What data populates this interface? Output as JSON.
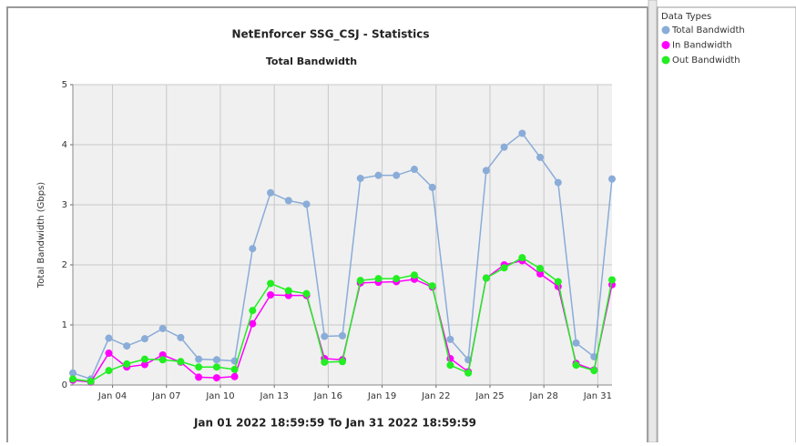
{
  "chart_data": {
    "type": "line",
    "title": "NetEnforcer SSG_CSJ - Statistics",
    "subtitle": "Total Bandwidth",
    "y_label": "Total Bandwidth (Gbps)",
    "footer": "Jan 01 2022 18:59:59  To  Jan 31 2022 18:59:59",
    "legend_title": "Data Types",
    "x": [
      "2022-01-01T18:59:59",
      "2022-01-02T18:59:59",
      "2022-01-03T18:59:59",
      "2022-01-04T18:59:59",
      "2022-01-05T18:59:59",
      "2022-01-06T18:59:59",
      "2022-01-07T18:59:59",
      "2022-01-08T18:59:59",
      "2022-01-09T18:59:59",
      "2022-01-10T18:59:59",
      "2022-01-11T18:59:59",
      "2022-01-12T18:59:59",
      "2022-01-13T18:59:59",
      "2022-01-14T18:59:59",
      "2022-01-15T18:59:59",
      "2022-01-16T18:59:59",
      "2022-01-17T18:59:59",
      "2022-01-18T18:59:59",
      "2022-01-19T18:59:59",
      "2022-01-20T18:59:59",
      "2022-01-21T18:59:59",
      "2022-01-22T18:59:59",
      "2022-01-23T18:59:59",
      "2022-01-24T18:59:59",
      "2022-01-25T18:59:59",
      "2022-01-26T18:59:59",
      "2022-01-27T18:59:59",
      "2022-01-28T18:59:59",
      "2022-01-29T18:59:59",
      "2022-01-30T18:59:59",
      "2022-01-31T18:59:59"
    ],
    "xlim": [
      "2022-01-01T18:59:59",
      "2022-01-31T18:59:59"
    ],
    "xticks": [
      {
        "value": "2022-01-04T00:00:00",
        "label": "Jan 04"
      },
      {
        "value": "2022-01-07T00:00:00",
        "label": "Jan 07"
      },
      {
        "value": "2022-01-10T00:00:00",
        "label": "Jan 10"
      },
      {
        "value": "2022-01-13T00:00:00",
        "label": "Jan 13"
      },
      {
        "value": "2022-01-16T00:00:00",
        "label": "Jan 16"
      },
      {
        "value": "2022-01-19T00:00:00",
        "label": "Jan 19"
      },
      {
        "value": "2022-01-22T00:00:00",
        "label": "Jan 22"
      },
      {
        "value": "2022-01-25T00:00:00",
        "label": "Jan 25"
      },
      {
        "value": "2022-01-28T00:00:00",
        "label": "Jan 28"
      },
      {
        "value": "2022-01-31T00:00:00",
        "label": "Jan 31"
      }
    ],
    "ylim": [
      0,
      5
    ],
    "yticks": [
      0,
      1,
      2,
      3,
      4,
      5
    ],
    "grid": true,
    "series": [
      {
        "name": "Total Bandwidth",
        "color": "#8aacd8",
        "values": [
          0.2,
          0.1,
          0.78,
          0.65,
          0.77,
          0.94,
          0.79,
          0.43,
          0.42,
          0.4,
          2.27,
          3.2,
          3.07,
          3.01,
          0.81,
          0.82,
          3.44,
          3.49,
          3.49,
          3.59,
          3.29,
          0.76,
          0.42,
          3.57,
          3.96,
          4.19,
          3.79,
          3.37,
          0.7,
          0.47,
          3.43
        ]
      },
      {
        "name": "In Bandwidth",
        "color": "#ff00ff",
        "values": [
          0.08,
          0.05,
          0.53,
          0.3,
          0.34,
          0.5,
          0.38,
          0.13,
          0.12,
          0.14,
          1.02,
          1.5,
          1.49,
          1.49,
          0.44,
          0.42,
          1.7,
          1.71,
          1.72,
          1.76,
          1.63,
          0.44,
          0.22,
          1.78,
          2.0,
          2.07,
          1.85,
          1.64,
          0.36,
          0.25,
          1.67
        ]
      },
      {
        "name": "Out Bandwidth",
        "color": "#22ee22",
        "values": [
          0.1,
          0.06,
          0.24,
          0.35,
          0.43,
          0.42,
          0.39,
          0.3,
          0.3,
          0.26,
          1.24,
          1.69,
          1.57,
          1.52,
          0.38,
          0.39,
          1.74,
          1.77,
          1.77,
          1.83,
          1.65,
          0.33,
          0.2,
          1.78,
          1.95,
          2.12,
          1.94,
          1.72,
          0.33,
          0.24,
          1.75
        ]
      }
    ]
  }
}
